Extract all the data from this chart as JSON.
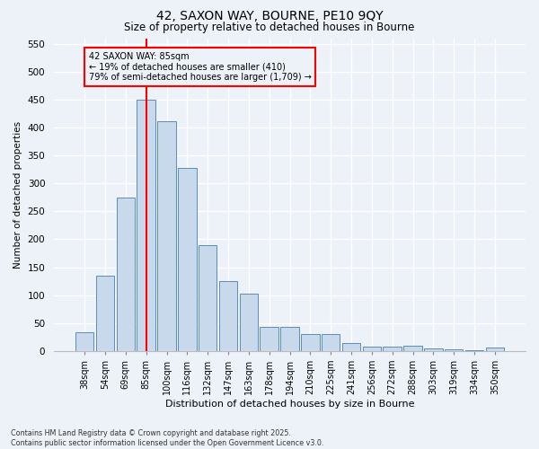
{
  "title_line1": "42, SAXON WAY, BOURNE, PE10 9QY",
  "title_line2": "Size of property relative to detached houses in Bourne",
  "xlabel": "Distribution of detached houses by size in Bourne",
  "ylabel": "Number of detached properties",
  "categories": [
    "38sqm",
    "54sqm",
    "69sqm",
    "85sqm",
    "100sqm",
    "116sqm",
    "132sqm",
    "147sqm",
    "163sqm",
    "178sqm",
    "194sqm",
    "210sqm",
    "225sqm",
    "241sqm",
    "256sqm",
    "272sqm",
    "288sqm",
    "303sqm",
    "319sqm",
    "334sqm",
    "350sqm"
  ],
  "values": [
    33,
    135,
    275,
    450,
    412,
    328,
    190,
    125,
    102,
    44,
    44,
    30,
    30,
    15,
    8,
    8,
    10,
    4,
    3,
    2,
    7
  ],
  "bar_color": "#c9d9ec",
  "bar_edge_color": "#5b8db8",
  "vline_x_index": 3,
  "vline_color": "red",
  "annotation_text": "42 SAXON WAY: 85sqm\n← 19% of detached houses are smaller (410)\n79% of semi-detached houses are larger (1,709) →",
  "annotation_box_color": "red",
  "annotation_text_color": "black",
  "ylim": [
    0,
    560
  ],
  "yticks": [
    0,
    50,
    100,
    150,
    200,
    250,
    300,
    350,
    400,
    450,
    500,
    550
  ],
  "footer_line1": "Contains HM Land Registry data © Crown copyright and database right 2025.",
  "footer_line2": "Contains public sector information licensed under the Open Government Licence v3.0.",
  "background_color": "#edf2f9",
  "grid_color": "#ffffff"
}
